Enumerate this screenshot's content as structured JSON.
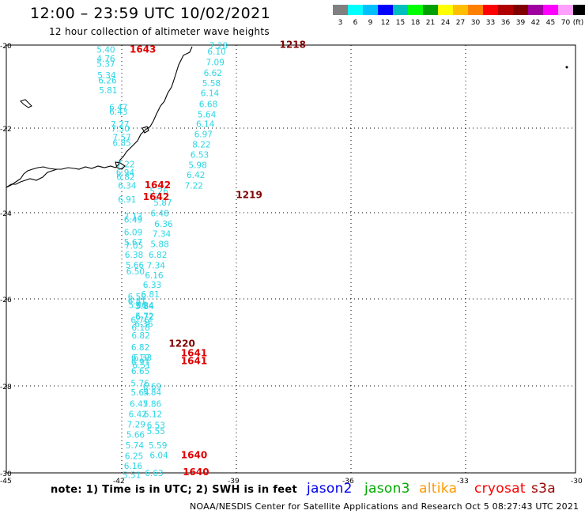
{
  "header": {
    "title": "12:00 – 23:59 UTC 10/02/2021",
    "subtitle": "12 hour collection of altimeter wave heights"
  },
  "color_scale": {
    "labels": [
      "3",
      "6",
      "9",
      "12",
      "15",
      "18",
      "21",
      "24",
      "27",
      "30",
      "33",
      "36",
      "39",
      "42",
      "45",
      "70",
      "(ft)"
    ],
    "colors": [
      "#808080",
      "#00ffff",
      "#00bfff",
      "#0000ff",
      "#00bfbf",
      "#00ff00",
      "#00a000",
      "#ffff00",
      "#ffbf00",
      "#ff8000",
      "#ff0000",
      "#b00000",
      "#800000",
      "#a000a0",
      "#ff00ff",
      "#ffa0ff",
      "#000000"
    ]
  },
  "axes": {
    "lat_labels": [
      "-20",
      "-22",
      "-24",
      "-26",
      "-28",
      "-30"
    ],
    "lon_labels": [
      "-45",
      "-42",
      "-39",
      "-36",
      "-33",
      "-30"
    ]
  },
  "map": {
    "lon_range": [
      -45,
      -30
    ],
    "lat_range": [
      -30,
      -20
    ],
    "wave_color": "#2ad6e6",
    "time_colors": {
      "dark": "#800000",
      "red": "#e00000"
    },
    "tracks": [
      {
        "id": "west",
        "points": [
          [
            "5.40",
            -42.62,
            -20.1
          ],
          [
            "4.76",
            -42.62,
            -20.31
          ],
          [
            "5.37",
            -42.62,
            -20.43
          ],
          [
            "5.34",
            -42.6,
            -20.7
          ],
          [
            "6.26",
            -42.58,
            -20.82
          ],
          [
            "5.81",
            -42.56,
            -21.05
          ],
          [
            "6.47",
            -42.29,
            -21.45
          ],
          [
            "6.43",
            -42.29,
            -21.55
          ],
          [
            "7.27",
            -42.25,
            -21.85
          ],
          [
            "7.50",
            -42.24,
            -21.95
          ],
          [
            "7.57",
            -42.2,
            -22.15
          ],
          [
            "6.85",
            -42.2,
            -22.28
          ],
          [
            "7.22",
            -42.1,
            -22.78
          ],
          [
            "6.94",
            -42.11,
            -22.98
          ],
          [
            "6.82",
            -42.1,
            -23.08
          ],
          [
            "6.34",
            -42.06,
            -23.28
          ],
          [
            "6.91",
            -42.06,
            -23.6
          ],
          [
            "7.13",
            -41.9,
            -24.0
          ],
          [
            "6.49",
            -41.9,
            -24.08
          ],
          [
            "6.09",
            -41.9,
            -24.37
          ],
          [
            "5.67",
            -41.9,
            -24.6
          ],
          [
            "7.05",
            -41.88,
            -24.69
          ],
          [
            "6.38",
            -41.88,
            -24.9
          ],
          [
            "5.66",
            -41.86,
            -25.14
          ],
          [
            "6.50",
            -41.84,
            -25.29
          ],
          [
            "6.59",
            -41.8,
            -25.88
          ],
          [
            "6.81",
            -41.8,
            -25.98
          ],
          [
            "5.86",
            -41.78,
            -26.07
          ],
          [
            "5.84",
            -41.6,
            -26.1
          ],
          [
            "6.72",
            -41.6,
            -26.35
          ],
          [
            "6.76",
            -41.72,
            -26.42
          ],
          [
            "6.18",
            -41.7,
            -26.6
          ],
          [
            "6.82",
            -41.7,
            -26.78
          ],
          [
            "6.82",
            -41.71,
            -27.06
          ],
          [
            "6.19",
            -41.71,
            -27.3
          ],
          [
            "6.91",
            -41.71,
            -27.4
          ],
          [
            "6.65",
            -41.71,
            -27.62
          ],
          [
            "5.76",
            -41.72,
            -27.9
          ],
          [
            "5.64",
            -41.72,
            -28.11
          ],
          [
            "6.47",
            -41.75,
            -28.38
          ],
          [
            "6.42",
            -41.78,
            -28.62
          ],
          [
            "7.29",
            -41.82,
            -28.86
          ],
          [
            "5.66",
            -41.84,
            -29.1
          ],
          [
            "5.74",
            -41.86,
            -29.35
          ],
          [
            "6.25",
            -41.88,
            -29.6
          ],
          [
            "6.16",
            -41.9,
            -29.83
          ],
          [
            "5.51",
            -41.94,
            -30.05
          ]
        ]
      },
      {
        "id": "middle",
        "points": [
          [
            "5.26",
            -41.22,
            -23.41
          ],
          [
            "5.87",
            -41.12,
            -23.68
          ],
          [
            "6.48",
            -41.2,
            -23.93
          ],
          [
            "6.36",
            -41.1,
            -24.18
          ],
          [
            "7.34",
            -41.15,
            -24.41
          ],
          [
            "5.88",
            -41.2,
            -24.65
          ],
          [
            "6.82",
            -41.25,
            -24.9
          ],
          [
            "7.34",
            -41.3,
            -25.15
          ],
          [
            "6.16",
            -41.35,
            -25.38
          ],
          [
            "6.33",
            -41.4,
            -25.6
          ],
          [
            "6.81",
            -41.45,
            -25.82
          ],
          [
            "5.84",
            -41.6,
            -26.08
          ],
          [
            "5.72",
            -41.6,
            -26.33
          ],
          [
            "6.36",
            -41.62,
            -26.52
          ],
          [
            "6.33",
            -41.65,
            -27.3
          ],
          [
            "6.51",
            -41.68,
            -27.48
          ],
          [
            "6.69",
            -41.4,
            -27.98
          ],
          [
            "5.84",
            -41.4,
            -28.11
          ],
          [
            "5.86",
            -41.4,
            -28.38
          ],
          [
            "6.12",
            -41.38,
            -28.62
          ],
          [
            "6.53",
            -41.3,
            -28.88
          ],
          [
            "5.55",
            -41.3,
            -29.02
          ],
          [
            "5.59",
            -41.25,
            -29.35
          ],
          [
            "6.04",
            -41.22,
            -29.58
          ],
          [
            "6.63",
            -41.35,
            -30.0
          ]
        ]
      },
      {
        "id": "east",
        "points": [
          [
            "7.28",
            -39.65,
            -20.01
          ],
          [
            "6.10",
            -39.7,
            -20.15
          ],
          [
            "7.09",
            -39.74,
            -20.4
          ],
          [
            "6.62",
            -39.8,
            -20.65
          ],
          [
            "5.58",
            -39.84,
            -20.89
          ],
          [
            "6.14",
            -39.88,
            -21.12
          ],
          [
            "6.68",
            -39.92,
            -21.38
          ],
          [
            "5.64",
            -39.96,
            -21.62
          ],
          [
            "6.14",
            -40.0,
            -21.84
          ],
          [
            "6.97",
            -40.05,
            -22.08
          ],
          [
            "8.22",
            -40.1,
            -22.32
          ],
          [
            "6.53",
            -40.15,
            -22.56
          ],
          [
            "5.98",
            -40.2,
            -22.8
          ],
          [
            "6.42",
            -40.25,
            -23.03
          ],
          [
            "7.22",
            -40.3,
            -23.28
          ]
        ]
      }
    ],
    "time_stamps": [
      {
        "text": "1218",
        "lon": -37.8,
        "lat": -19.99,
        "color": "dark"
      },
      {
        "text": "1643",
        "lon": -41.75,
        "lat": -20.1,
        "color": "red"
      },
      {
        "text": "1642",
        "lon": -41.36,
        "lat": -23.27,
        "color": "red"
      },
      {
        "text": "1642",
        "lon": -41.4,
        "lat": -23.55,
        "color": "red"
      },
      {
        "text": "1219",
        "lon": -38.95,
        "lat": -23.5,
        "color": "dark"
      },
      {
        "text": "1220",
        "lon": -40.72,
        "lat": -26.98,
        "color": "dark"
      },
      {
        "text": "1641",
        "lon": -40.4,
        "lat": -27.2,
        "color": "red"
      },
      {
        "text": "1641",
        "lon": -40.4,
        "lat": -27.38,
        "color": "red"
      },
      {
        "text": "1640",
        "lon": -40.4,
        "lat": -29.58,
        "color": "red"
      },
      {
        "text": "1640",
        "lon": -40.35,
        "lat": -29.98,
        "color": "red"
      }
    ]
  },
  "footer": {
    "note": "note:  1) Time is in UTC; 2) SWH is in feet",
    "satellites": [
      {
        "name": "jason2",
        "color": "#0000ee"
      },
      {
        "name": "jason3",
        "color": "#00aa00"
      },
      {
        "name": "altika",
        "color": "#ff9900"
      },
      {
        "name": "cryosat",
        "color": "#ff0000"
      },
      {
        "name": "s3a",
        "color": "#990000"
      }
    ],
    "credit": "NOAA/NESDIS Center for Satellite Applications and Research    Oct  5 08:27:43 UTC 2021"
  }
}
